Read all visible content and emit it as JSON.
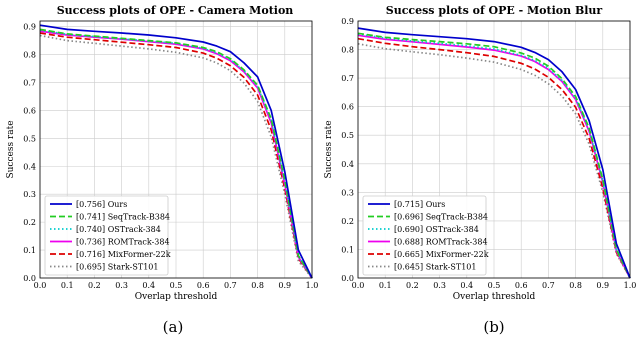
{
  "chart_data": [
    {
      "type": "line",
      "title": "Success plots of OPE - Camera Motion",
      "xlabel": "Overlap threshold",
      "ylabel": "Success rate",
      "caption": "(a)",
      "xlim": [
        0,
        1
      ],
      "ylim": [
        0,
        0.92
      ],
      "grid": true,
      "legend_position": "lower-left",
      "x": [
        0,
        0.1,
        0.2,
        0.3,
        0.4,
        0.5,
        0.6,
        0.65,
        0.7,
        0.75,
        0.8,
        0.85,
        0.9,
        0.95,
        1.0
      ],
      "series": [
        {
          "name": "Ours",
          "score": "[0.756]",
          "color": "#0000cc",
          "style": "solid",
          "values": [
            0.905,
            0.89,
            0.883,
            0.877,
            0.87,
            0.86,
            0.845,
            0.83,
            0.81,
            0.77,
            0.72,
            0.6,
            0.38,
            0.1,
            0.0
          ]
        },
        {
          "name": "SeqTrack-B384",
          "score": "[0.741]",
          "color": "#22cc22",
          "style": "dashed",
          "values": [
            0.89,
            0.874,
            0.866,
            0.858,
            0.85,
            0.842,
            0.825,
            0.81,
            0.785,
            0.745,
            0.69,
            0.57,
            0.35,
            0.08,
            0.0
          ]
        },
        {
          "name": "OSTrack-384",
          "score": "[0.740]",
          "color": "#00cccc",
          "style": "dotted",
          "values": [
            0.887,
            0.872,
            0.864,
            0.856,
            0.848,
            0.84,
            0.822,
            0.806,
            0.782,
            0.742,
            0.686,
            0.565,
            0.345,
            0.08,
            0.0
          ]
        },
        {
          "name": "ROMTrack-384",
          "score": "[0.736]",
          "color": "#ee00ee",
          "style": "solid",
          "values": [
            0.884,
            0.87,
            0.862,
            0.855,
            0.846,
            0.837,
            0.82,
            0.803,
            0.778,
            0.738,
            0.68,
            0.555,
            0.335,
            0.075,
            0.0
          ]
        },
        {
          "name": "MixFormer-22k",
          "score": "[0.716]",
          "color": "#dd0000",
          "style": "dashed",
          "values": [
            0.877,
            0.862,
            0.853,
            0.844,
            0.835,
            0.825,
            0.805,
            0.787,
            0.76,
            0.718,
            0.655,
            0.53,
            0.32,
            0.07,
            0.0
          ]
        },
        {
          "name": "Stark-ST101",
          "score": "[0.695]",
          "color": "#888888",
          "style": "dotted",
          "values": [
            0.868,
            0.85,
            0.84,
            0.83,
            0.82,
            0.808,
            0.788,
            0.77,
            0.742,
            0.698,
            0.632,
            0.505,
            0.3,
            0.06,
            0.0
          ]
        }
      ]
    },
    {
      "type": "line",
      "title": "Success plots of OPE - Motion Blur",
      "xlabel": "Overlap threshold",
      "ylabel": "Success rate",
      "caption": "(b)",
      "xlim": [
        0,
        1
      ],
      "ylim": [
        0,
        0.9
      ],
      "grid": true,
      "legend_position": "lower-left",
      "x": [
        0,
        0.1,
        0.2,
        0.3,
        0.4,
        0.5,
        0.6,
        0.65,
        0.7,
        0.75,
        0.8,
        0.85,
        0.9,
        0.95,
        1.0
      ],
      "series": [
        {
          "name": "Ours",
          "score": "[0.715]",
          "color": "#0000cc",
          "style": "solid",
          "values": [
            0.875,
            0.86,
            0.852,
            0.845,
            0.838,
            0.828,
            0.808,
            0.79,
            0.765,
            0.722,
            0.66,
            0.55,
            0.38,
            0.12,
            0.0
          ]
        },
        {
          "name": "SeqTrack-B384",
          "score": "[0.696]",
          "color": "#22cc22",
          "style": "dashed",
          "values": [
            0.857,
            0.843,
            0.835,
            0.828,
            0.82,
            0.81,
            0.788,
            0.77,
            0.742,
            0.698,
            0.636,
            0.525,
            0.345,
            0.1,
            0.0
          ]
        },
        {
          "name": "OSTrack-384",
          "score": "[0.690]",
          "color": "#00cccc",
          "style": "dotted",
          "values": [
            0.854,
            0.84,
            0.83,
            0.822,
            0.813,
            0.802,
            0.78,
            0.762,
            0.735,
            0.692,
            0.63,
            0.518,
            0.34,
            0.1,
            0.0
          ]
        },
        {
          "name": "ROMTrack-384",
          "score": "[0.688]",
          "color": "#ee00ee",
          "style": "solid",
          "values": [
            0.85,
            0.836,
            0.827,
            0.818,
            0.809,
            0.798,
            0.777,
            0.758,
            0.73,
            0.688,
            0.625,
            0.513,
            0.335,
            0.095,
            0.0
          ]
        },
        {
          "name": "MixFormer-22k",
          "score": "[0.665]",
          "color": "#dd0000",
          "style": "dashed",
          "values": [
            0.838,
            0.822,
            0.81,
            0.8,
            0.789,
            0.776,
            0.752,
            0.732,
            0.703,
            0.66,
            0.598,
            0.488,
            0.315,
            0.09,
            0.0
          ]
        },
        {
          "name": "Stark-ST101",
          "score": "[0.645]",
          "color": "#888888",
          "style": "dotted",
          "values": [
            0.82,
            0.803,
            0.792,
            0.782,
            0.77,
            0.756,
            0.73,
            0.71,
            0.68,
            0.637,
            0.575,
            0.468,
            0.3,
            0.085,
            0.0
          ]
        }
      ]
    }
  ]
}
